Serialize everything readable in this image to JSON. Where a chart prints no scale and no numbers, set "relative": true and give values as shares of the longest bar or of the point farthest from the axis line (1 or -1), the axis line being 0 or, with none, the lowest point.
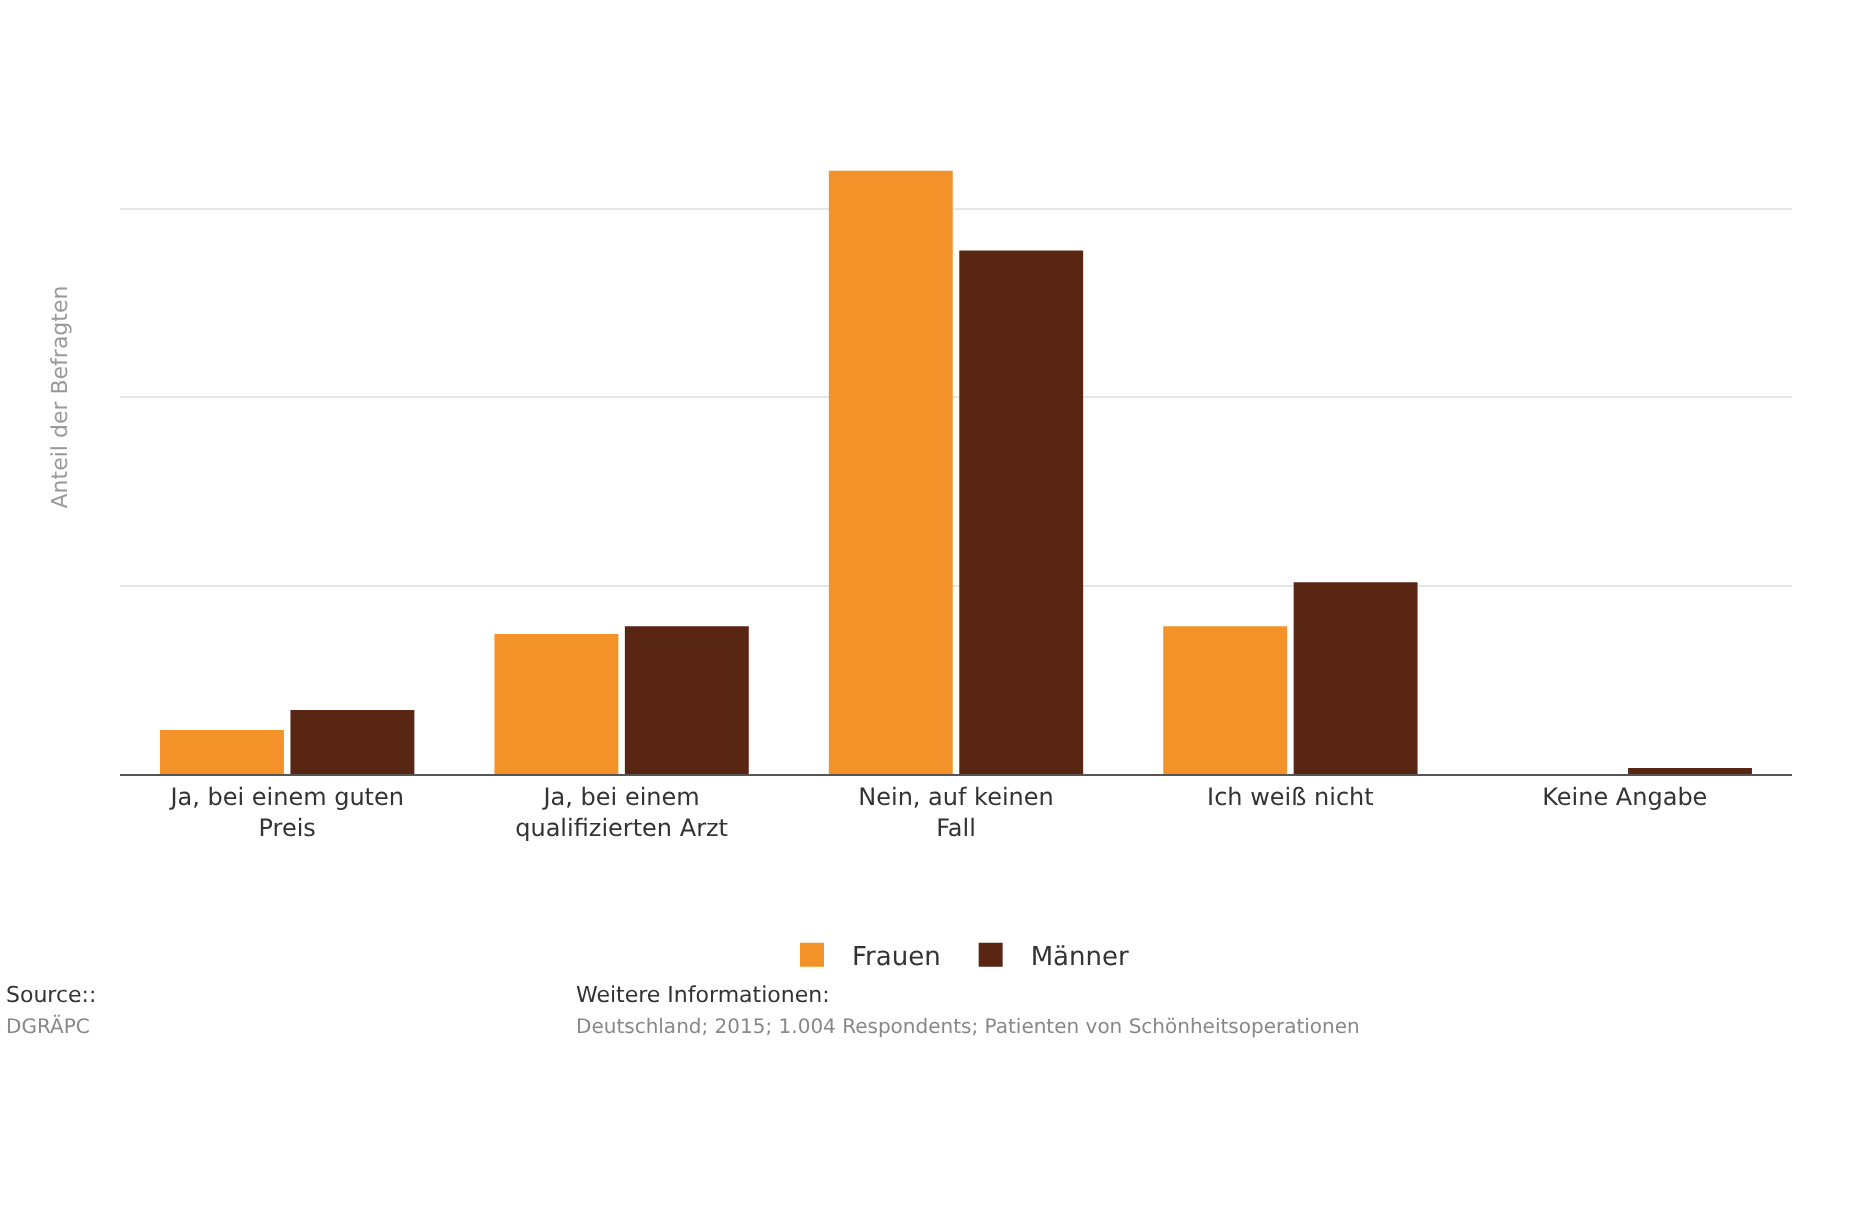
{
  "chart_data": {
    "type": "bar",
    "relative": true,
    "ylabel": "Anteil der Befragten",
    "categories": [
      "Ja, bei einem guten Preis",
      "Ja, bei einem qualifizierten Arzt",
      "Nein, auf keinen Fall",
      "Ich weiß nicht",
      "Keine Angabe"
    ],
    "series": [
      {
        "name": "Frauen",
        "color": "#f39229",
        "values": [
          0.073,
          0.232,
          1,
          0.245,
          0
        ]
      },
      {
        "name": "Männer",
        "color": "#5a2614",
        "values": [
          0.106,
          0.245,
          0.868,
          0.318,
          0.01
        ]
      }
    ],
    "grid": "y",
    "legend": "bottom",
    "annotations": [
      "Source::\nDGRÄPC",
      "Weitere Informationen:\nDeutschland; 2015; 1.004 Respondents; Patienten von Schönheitsoperationen"
    ]
  }
}
